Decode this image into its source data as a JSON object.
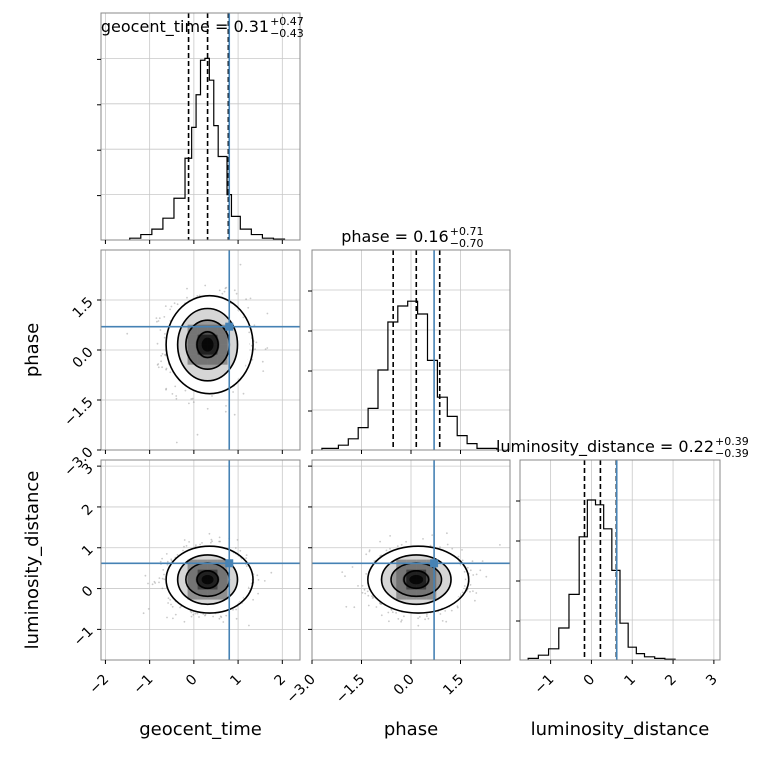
{
  "chart_data": {
    "type": "corner",
    "parameters": [
      "geocent_time",
      "phase",
      "luminosity_distance"
    ],
    "truth": {
      "geocent_time": 0.8,
      "phase": 0.7,
      "luminosity_distance": 0.62
    },
    "axis_ticks": {
      "geocent_time": [
        "−2",
        "−1",
        "0",
        "1",
        "2"
      ],
      "phase_x": [
        "−3.0",
        "−1.5",
        "0.0",
        "1.5"
      ],
      "phase_y": [
        "1.5",
        "0.0",
        "−1.5",
        "−3.0"
      ],
      "luminosity_distance": [
        "−1",
        "0",
        "1",
        "2",
        "3"
      ]
    },
    "titles": [
      {
        "param": "geocent_time",
        "prefix": "geocent_time = ",
        "median": "0.31",
        "upper": "+0.47",
        "lower": "−0.43"
      },
      {
        "param": "phase",
        "prefix": "phase = ",
        "median": "0.16",
        "upper": "+0.71",
        "lower": "−0.70"
      },
      {
        "param": "luminosity_distance",
        "prefix": "luminosity_distance = ",
        "median": "0.22",
        "upper": "+0.39",
        "lower": "−0.39"
      }
    ],
    "axis_labels": {
      "x": [
        "geocent_time",
        "phase",
        "luminosity_distance"
      ],
      "y": [
        "phase",
        "luminosity_distance"
      ]
    },
    "ranges": {
      "geocent_time": [
        -2.1,
        2.4
      ],
      "phase": [
        -3.0,
        3.0
      ],
      "luminosity_distance": [
        -1.75,
        3.15
      ]
    },
    "quantiles": {
      "geocent_time": [
        -0.12,
        0.31,
        0.78
      ],
      "phase": [
        -0.54,
        0.16,
        0.87
      ],
      "luminosity_distance": [
        -0.17,
        0.22,
        0.61
      ]
    },
    "marginals": {
      "geocent_time": {
        "edges": [
          -1.45,
          -1.2,
          -0.95,
          -0.7,
          -0.45,
          -0.2,
          -0.05,
          0.05,
          0.15,
          0.25,
          0.35,
          0.45,
          0.55,
          0.65,
          0.75,
          0.85,
          1.05,
          1.3,
          1.55,
          1.8,
          2.05
        ],
        "counts": [
          0.01,
          0.03,
          0.06,
          0.12,
          0.23,
          0.45,
          0.62,
          0.8,
          0.99,
          1.0,
          0.88,
          0.63,
          0.46,
          0.46,
          0.25,
          0.13,
          0.06,
          0.03,
          0.01,
          0.005
        ]
      },
      "phase": {
        "edges": [
          -2.7,
          -2.2,
          -1.9,
          -1.6,
          -1.3,
          -1.0,
          -0.7,
          -0.4,
          -0.1,
          0.2,
          0.5,
          0.8,
          1.1,
          1.4,
          1.7,
          2.0,
          2.6
        ],
        "counts": [
          0.01,
          0.03,
          0.07,
          0.14,
          0.26,
          0.5,
          0.8,
          0.9,
          0.93,
          0.85,
          0.56,
          0.33,
          0.21,
          0.09,
          0.04,
          0.01
        ]
      },
      "luminosity_distance": {
        "edges": [
          -1.55,
          -1.3,
          -1.05,
          -0.8,
          -0.55,
          -0.3,
          -0.1,
          0.1,
          0.3,
          0.5,
          0.7,
          0.9,
          1.1,
          1.3,
          1.55,
          1.8,
          2.05
        ],
        "counts": [
          0.01,
          0.03,
          0.07,
          0.2,
          0.41,
          0.77,
          1.0,
          0.97,
          0.82,
          0.56,
          0.23,
          0.08,
          0.04,
          0.02,
          0.01,
          0.005
        ]
      }
    },
    "contours_2d": [
      {
        "x": "geocent_time",
        "y": "phase",
        "center": [
          0.31,
          0.16
        ],
        "sigma": [
          0.45,
          0.7
        ]
      },
      {
        "x": "geocent_time",
        "y": "luminosity_distance",
        "center": [
          0.31,
          0.22
        ],
        "sigma": [
          0.45,
          0.39
        ]
      },
      {
        "x": "phase",
        "y": "luminosity_distance",
        "center": [
          0.16,
          0.22
        ],
        "sigma": [
          0.7,
          0.39
        ]
      }
    ],
    "grid": true,
    "colors": {
      "truth": "#4682b4",
      "hist": "#000000",
      "scatter": "#777777"
    }
  }
}
